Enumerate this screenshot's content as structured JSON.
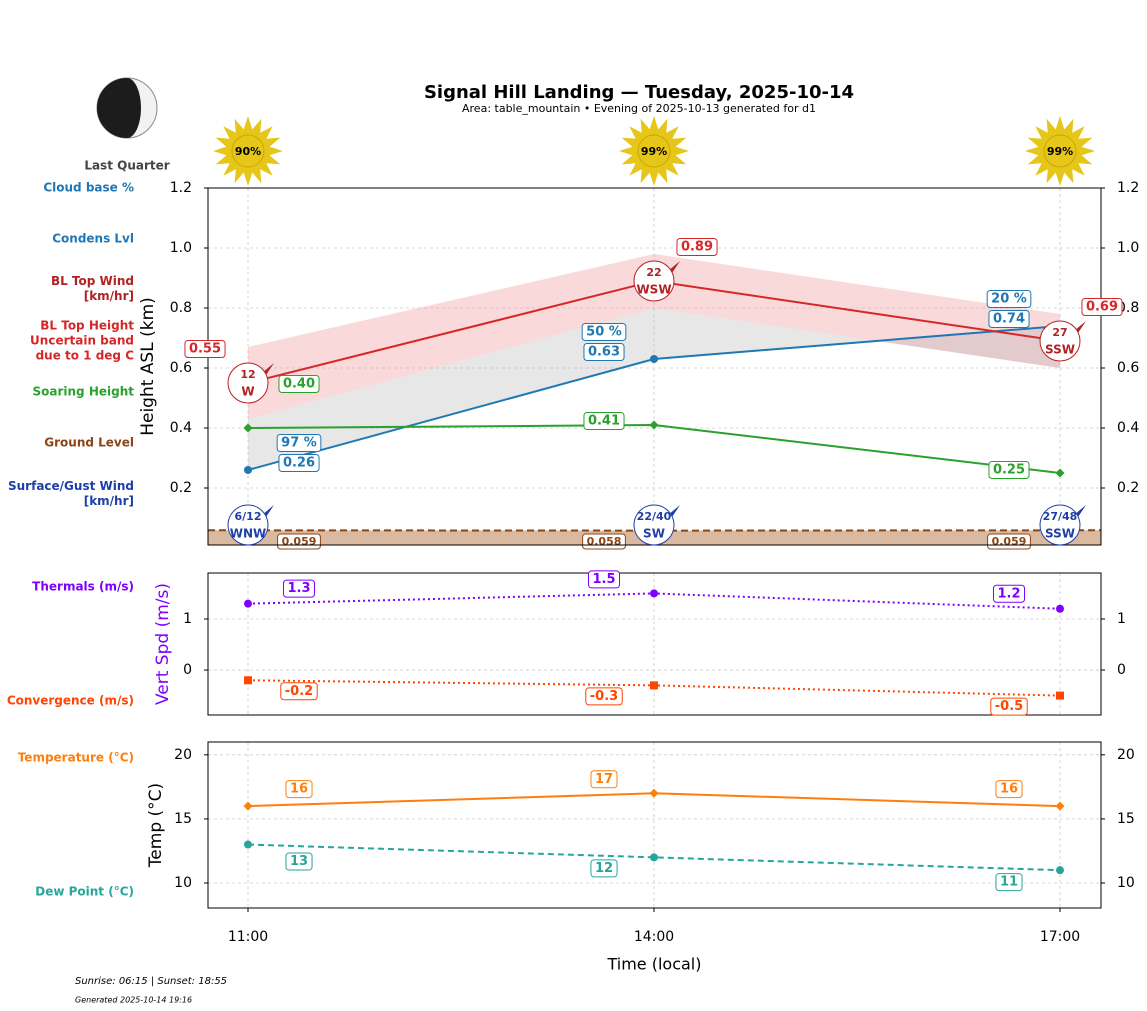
{
  "header": {
    "title": "Signal Hill Landing — Tuesday, 2025-10-14",
    "subtitle": "Area: table_mountain • Evening of 2025-10-13 generated for d1",
    "moon_phase": "Last Quarter",
    "sun_times": "Sunrise: 06:15 | Sunset: 18:55",
    "generated": "Generated 2025-10-14 19:16"
  },
  "chart_data": [
    {
      "type": "line",
      "ylabel": "Height ASL (km)",
      "ylim": [
        0.01,
        1.2
      ],
      "yticks": [
        0.2,
        0.4,
        0.6,
        0.8,
        {
          "value": 1,
          "label": "1.0"
        },
        1.2
      ],
      "grid": true,
      "sun": {
        "values": [
          90,
          99,
          99
        ],
        "value_labels": [
          "90%",
          "99%",
          "99%"
        ]
      },
      "series": [
        {
          "name": "Cloud base %",
          "kind": "note",
          "color": "#1f77b4",
          "values": [
            97,
            50,
            20
          ],
          "value_labels": [
            "97 %",
            "50 %",
            "20 %"
          ]
        },
        {
          "name": "Condens Lvl",
          "kind": "line",
          "color": "#1f77b4",
          "marker": "circle",
          "values": [
            0.26,
            0.63,
            0.74
          ]
        },
        {
          "name": "BL Top Wind\n[km/hr]",
          "kind": "wind",
          "color": "#b22222",
          "values": [
            12,
            22,
            27
          ],
          "directions": [
            "W",
            "WSW",
            "SSW"
          ]
        },
        {
          "name": "BL Top Height\nUncertain band\ndue to 1 deg C",
          "kind": "band",
          "color": "#d62728",
          "values": [
            0.55,
            0.89,
            0.69
          ],
          "upper": [
            0.67,
            0.98,
            0.78
          ],
          "lower": [
            0.43,
            0.8,
            0.6
          ]
        },
        {
          "name": "Soaring Height",
          "kind": "line",
          "color": "#2ca02c",
          "marker": "diamond",
          "values": [
            0.4,
            0.41,
            0.25
          ],
          "value_labels": [
            "0.40",
            "0.41",
            "0.25"
          ]
        },
        {
          "name": "Ground Level",
          "kind": "ground",
          "color": "#8b4513",
          "values": [
            0.059,
            0.058,
            0.059
          ]
        },
        {
          "name": "Surface/Gust Wind\n[km/hr]",
          "kind": "surface-wind",
          "color": "#1f3fa8",
          "winds": [
            "6/12",
            "22/40",
            "27/48"
          ],
          "directions": [
            "WNW",
            "SW",
            "SSW"
          ]
        }
      ]
    },
    {
      "type": "line",
      "ylabel": "Vert Spd (m/s)",
      "ylabel_color": "#7f00ff",
      "ylim": [
        -0.88,
        1.9
      ],
      "yticks": [
        0,
        1
      ],
      "grid": true,
      "series": [
        {
          "name": "Thermals (m/s)",
          "kind": "line",
          "color": "#7f00ff",
          "marker": "circle",
          "linestyle": "dotted",
          "values": [
            1.3,
            1.5,
            1.2
          ]
        },
        {
          "name": "Convergence (m/s)",
          "kind": "line",
          "color": "#ff4500",
          "marker": "square",
          "linestyle": "dotted",
          "values": [
            -0.2,
            -0.3,
            -0.5
          ]
        }
      ]
    },
    {
      "type": "line",
      "ylabel": "Temp (°C)",
      "ylim": [
        8.05,
        21
      ],
      "yticks": [
        10,
        15,
        20
      ],
      "grid": true,
      "categories": [
        "11:00",
        "14:00",
        "17:00"
      ],
      "xlabel": "Time (local)",
      "series": [
        {
          "name": "Temperature (°C)",
          "kind": "line",
          "color": "#ff7f0e",
          "marker": "diamond",
          "values": [
            16,
            17,
            16
          ]
        },
        {
          "name": "Dew Point (°C)",
          "kind": "line",
          "color": "#26a69a",
          "marker": "circle",
          "linestyle": "dashed",
          "values": [
            13,
            12,
            11
          ]
        }
      ]
    }
  ]
}
